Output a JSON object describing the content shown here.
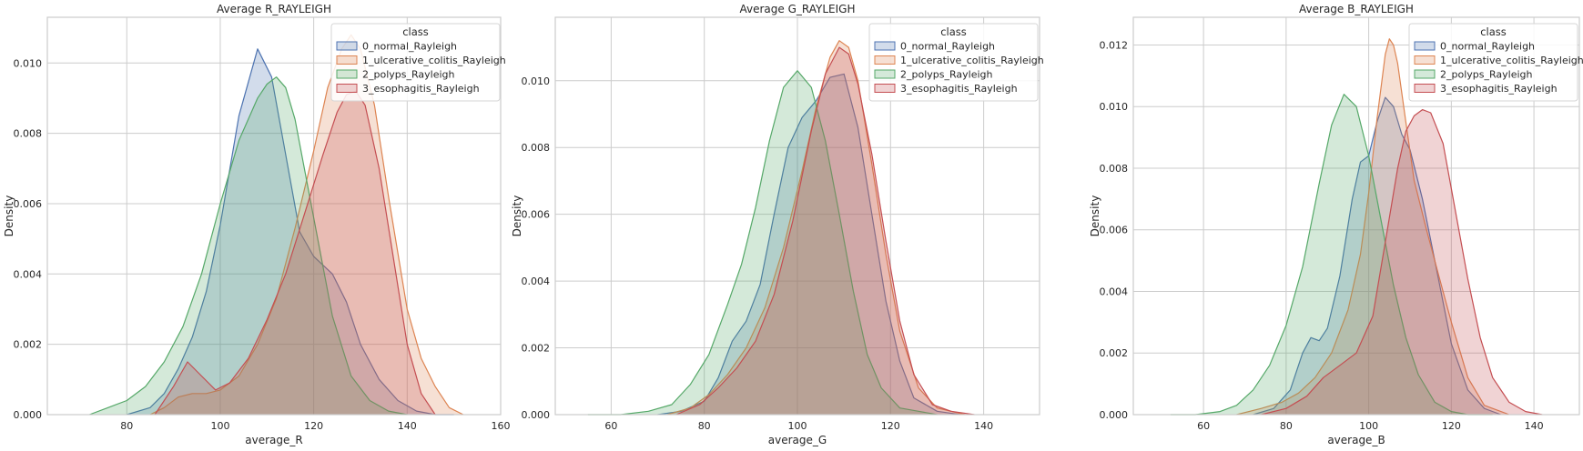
{
  "legend": {
    "title": "class",
    "entries": [
      "0_normal_Rayleigh",
      "1_ulcerative_colitis_Rayleigh",
      "2_polyps_Rayleigh",
      "3_esophagitis_Rayleigh"
    ],
    "colors": [
      "#4c72b0",
      "#dd8452",
      "#55a868",
      "#c44e52"
    ]
  },
  "chart_data": [
    {
      "type": "area",
      "title": "Average R_RAYLEIGH",
      "xlabel": "average_R",
      "ylabel": "Density",
      "xlim": [
        63,
        160
      ],
      "ylim": [
        0,
        0.0113
      ],
      "xticks": [
        80,
        100,
        120,
        140,
        160
      ],
      "yticks": [
        0,
        0.002,
        0.004,
        0.006,
        0.008,
        0.01
      ],
      "ytick_labels": [
        "0.000",
        "0.002",
        "0.004",
        "0.006",
        "0.008",
        "0.010"
      ],
      "grid": true,
      "legend_position": "top-right",
      "series": [
        {
          "name": "0_normal_Rayleigh",
          "x": [
            80,
            85,
            88,
            91,
            94,
            97,
            100,
            104,
            108,
            111,
            114,
            117,
            120,
            124,
            127,
            130,
            134,
            138,
            142,
            146,
            150
          ],
          "y": [
            0.0,
            0.0002,
            0.0006,
            0.0013,
            0.0022,
            0.0035,
            0.0054,
            0.0085,
            0.0104,
            0.0096,
            0.0074,
            0.0052,
            0.0045,
            0.004,
            0.0032,
            0.002,
            0.001,
            0.0004,
            0.0001,
            0.0,
            0.0
          ]
        },
        {
          "name": "1_ulcerative_colitis_Rayleigh",
          "x": [
            85,
            88,
            91,
            94,
            97,
            100,
            104,
            108,
            112,
            116,
            120,
            123,
            126,
            128,
            130,
            133,
            136,
            140,
            143,
            146,
            149,
            152
          ],
          "y": [
            0.0,
            0.0002,
            0.0005,
            0.0006,
            0.0006,
            0.0007,
            0.0011,
            0.002,
            0.0033,
            0.0053,
            0.0075,
            0.0093,
            0.0104,
            0.0108,
            0.0104,
            0.0088,
            0.0062,
            0.003,
            0.0016,
            0.0008,
            0.0002,
            0.0
          ]
        },
        {
          "name": "2_polyps_Rayleigh",
          "x": [
            72,
            76,
            80,
            84,
            88,
            92,
            96,
            100,
            104,
            108,
            110,
            112,
            114,
            116,
            120,
            124,
            128,
            132,
            136,
            140
          ],
          "y": [
            0.0,
            0.0002,
            0.0004,
            0.0008,
            0.0015,
            0.0025,
            0.004,
            0.006,
            0.0078,
            0.009,
            0.0094,
            0.0096,
            0.0093,
            0.0084,
            0.0056,
            0.0028,
            0.0011,
            0.0004,
            0.0001,
            0.0
          ]
        },
        {
          "name": "3_esophagitis_Rayleigh",
          "x": [
            86,
            90,
            93,
            96,
            99,
            102,
            106,
            110,
            114,
            118,
            122,
            125,
            127,
            129,
            131,
            134,
            137,
            140,
            143,
            146
          ],
          "y": [
            0.0,
            0.0008,
            0.0015,
            0.0011,
            0.0007,
            0.0009,
            0.0016,
            0.0027,
            0.004,
            0.0057,
            0.0074,
            0.0086,
            0.0091,
            0.0092,
            0.0088,
            0.007,
            0.0045,
            0.002,
            0.0006,
            0.0
          ]
        }
      ]
    },
    {
      "type": "area",
      "title": "Average G_RAYLEIGH",
      "xlabel": "average_G",
      "ylabel": "Density",
      "xlim": [
        48,
        152
      ],
      "ylim": [
        0,
        0.0119
      ],
      "xticks": [
        60,
        80,
        100,
        120,
        140
      ],
      "yticks": [
        0,
        0.002,
        0.004,
        0.006,
        0.008,
        0.01
      ],
      "ytick_labels": [
        "0.000",
        "0.002",
        "0.004",
        "0.006",
        "0.008",
        "0.010"
      ],
      "grid": true,
      "legend_position": "top-right",
      "series": [
        {
          "name": "0_normal_Rayleigh",
          "x": [
            70,
            75,
            80,
            83,
            86,
            89,
            92,
            95,
            98,
            101,
            104,
            107,
            110,
            113,
            116,
            119,
            122,
            125,
            130,
            135
          ],
          "y": [
            0.0,
            0.0001,
            0.0004,
            0.0011,
            0.0022,
            0.0028,
            0.0039,
            0.006,
            0.008,
            0.0089,
            0.0094,
            0.0101,
            0.0102,
            0.0086,
            0.006,
            0.0034,
            0.0016,
            0.0005,
            0.0001,
            0.0
          ]
        },
        {
          "name": "1_ulcerative_colitis_Rayleigh",
          "x": [
            72,
            77,
            81,
            85,
            89,
            93,
            97,
            101,
            104,
            107,
            109,
            111,
            113,
            116,
            119,
            122,
            126,
            130,
            136
          ],
          "y": [
            0.0,
            0.0002,
            0.0006,
            0.0012,
            0.002,
            0.0032,
            0.005,
            0.0073,
            0.0092,
            0.0107,
            0.0112,
            0.011,
            0.01,
            0.0075,
            0.0048,
            0.0025,
            0.0008,
            0.0002,
            0.0
          ]
        },
        {
          "name": "2_polyps_Rayleigh",
          "x": [
            55,
            62,
            68,
            73,
            77,
            81,
            85,
            88,
            91,
            94,
            97,
            100,
            103,
            106,
            109,
            112,
            115,
            118,
            122,
            126,
            130
          ],
          "y": [
            0.0,
            0.0,
            0.0001,
            0.0003,
            0.0009,
            0.0018,
            0.0033,
            0.0045,
            0.0062,
            0.0082,
            0.0098,
            0.0103,
            0.0098,
            0.0082,
            0.006,
            0.0037,
            0.0018,
            0.0008,
            0.0002,
            0.0001,
            0.0
          ]
        },
        {
          "name": "3_esophagitis_Rayleigh",
          "x": [
            74,
            79,
            83,
            87,
            91,
            95,
            99,
            103,
            106,
            109,
            111,
            113,
            116,
            119,
            122,
            125,
            129,
            133,
            138
          ],
          "y": [
            0.0,
            0.0003,
            0.0008,
            0.0014,
            0.0022,
            0.0036,
            0.0058,
            0.0085,
            0.0102,
            0.011,
            0.0108,
            0.0099,
            0.0078,
            0.0052,
            0.0028,
            0.0012,
            0.0003,
            0.0001,
            0.0
          ]
        }
      ]
    },
    {
      "type": "area",
      "title": "Average B_RAYLEIGH",
      "xlabel": "average_B",
      "ylabel": "Density",
      "xlim": [
        43,
        151
      ],
      "ylim": [
        0,
        0.0129
      ],
      "xticks": [
        60,
        80,
        100,
        120,
        140
      ],
      "yticks": [
        0,
        0.002,
        0.004,
        0.006,
        0.008,
        0.01,
        0.012
      ],
      "ytick_labels": [
        "0.000",
        "0.002",
        "0.004",
        "0.006",
        "0.008",
        "0.010",
        "0.012"
      ],
      "grid": true,
      "legend_position": "top-right",
      "series": [
        {
          "name": "0_normal_Rayleigh",
          "x": [
            72,
            77,
            81,
            84,
            86,
            88,
            90,
            93,
            96,
            98,
            100,
            102,
            104,
            106,
            108,
            110,
            113,
            116,
            120,
            124,
            128,
            132
          ],
          "y": [
            0.0,
            0.0002,
            0.0008,
            0.002,
            0.0025,
            0.0024,
            0.0028,
            0.0045,
            0.007,
            0.0082,
            0.0084,
            0.0095,
            0.0103,
            0.01,
            0.0091,
            0.0086,
            0.007,
            0.005,
            0.0023,
            0.0008,
            0.0002,
            0.0
          ]
        },
        {
          "name": "1_ulcerative_colitis_Rayleigh",
          "x": [
            68,
            74,
            79,
            83,
            87,
            91,
            95,
            98,
            100,
            102,
            104,
            105,
            106,
            107,
            109,
            111,
            114,
            117,
            120,
            124,
            128,
            134
          ],
          "y": [
            0.0,
            0.0002,
            0.0004,
            0.0007,
            0.0012,
            0.002,
            0.0034,
            0.0052,
            0.0072,
            0.0096,
            0.0117,
            0.0122,
            0.012,
            0.0114,
            0.0095,
            0.0076,
            0.006,
            0.0045,
            0.003,
            0.0012,
            0.0003,
            0.0
          ]
        },
        {
          "name": "2_polyps_Rayleigh",
          "x": [
            52,
            58,
            64,
            68,
            72,
            76,
            80,
            84,
            88,
            91,
            94,
            97,
            100,
            103,
            106,
            109,
            112,
            116,
            120,
            124,
            130
          ],
          "y": [
            0.0,
            0.0,
            0.0001,
            0.0003,
            0.0008,
            0.0016,
            0.0029,
            0.0048,
            0.0075,
            0.0094,
            0.0104,
            0.01,
            0.0084,
            0.0063,
            0.0042,
            0.0025,
            0.0013,
            0.0004,
            0.0001,
            0.0,
            0.0
          ]
        },
        {
          "name": "3_esophagitis_Rayleigh",
          "x": [
            74,
            80,
            85,
            89,
            93,
            97,
            101,
            104,
            107,
            109,
            111,
            113,
            115,
            118,
            121,
            124,
            127,
            130,
            134,
            138,
            142
          ],
          "y": [
            0.0,
            0.0002,
            0.0006,
            0.0012,
            0.0016,
            0.002,
            0.0032,
            0.0056,
            0.008,
            0.0092,
            0.0097,
            0.0099,
            0.0098,
            0.0088,
            0.0066,
            0.0044,
            0.0025,
            0.0012,
            0.0004,
            0.0001,
            0.0
          ]
        }
      ]
    }
  ]
}
